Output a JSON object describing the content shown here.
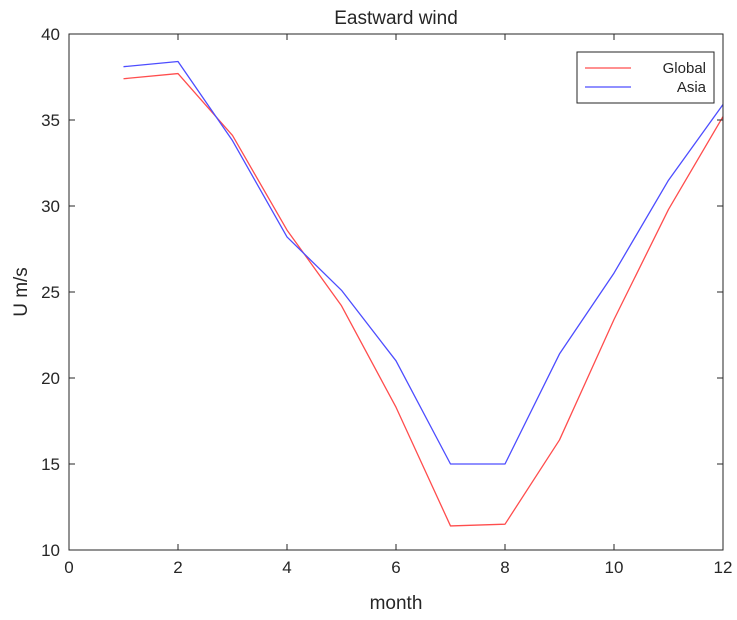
{
  "chart_data": {
    "type": "line",
    "title": "Eastward wind",
    "xlabel": "month",
    "ylabel": "U m/s",
    "xlim": [
      0,
      12
    ],
    "ylim": [
      10,
      40
    ],
    "xticks": [
      0,
      2,
      4,
      6,
      8,
      10,
      12
    ],
    "yticks": [
      10,
      15,
      20,
      25,
      30,
      35,
      40
    ],
    "grid": false,
    "legend_position": "top-right",
    "x": [
      1,
      2,
      3,
      4,
      5,
      6,
      7,
      8,
      9,
      10,
      11,
      12
    ],
    "series": [
      {
        "name": "Global",
        "color": "#ff4d4d",
        "values": [
          37.4,
          37.7,
          34.1,
          28.6,
          24.2,
          18.3,
          11.4,
          11.5,
          16.4,
          23.4,
          29.8,
          35.2
        ]
      },
      {
        "name": "Asia",
        "color": "#4d4dff",
        "values": [
          38.1,
          38.4,
          33.8,
          28.2,
          25.1,
          21.0,
          15.0,
          15.0,
          21.4,
          26.1,
          31.5,
          35.9
        ]
      }
    ]
  }
}
